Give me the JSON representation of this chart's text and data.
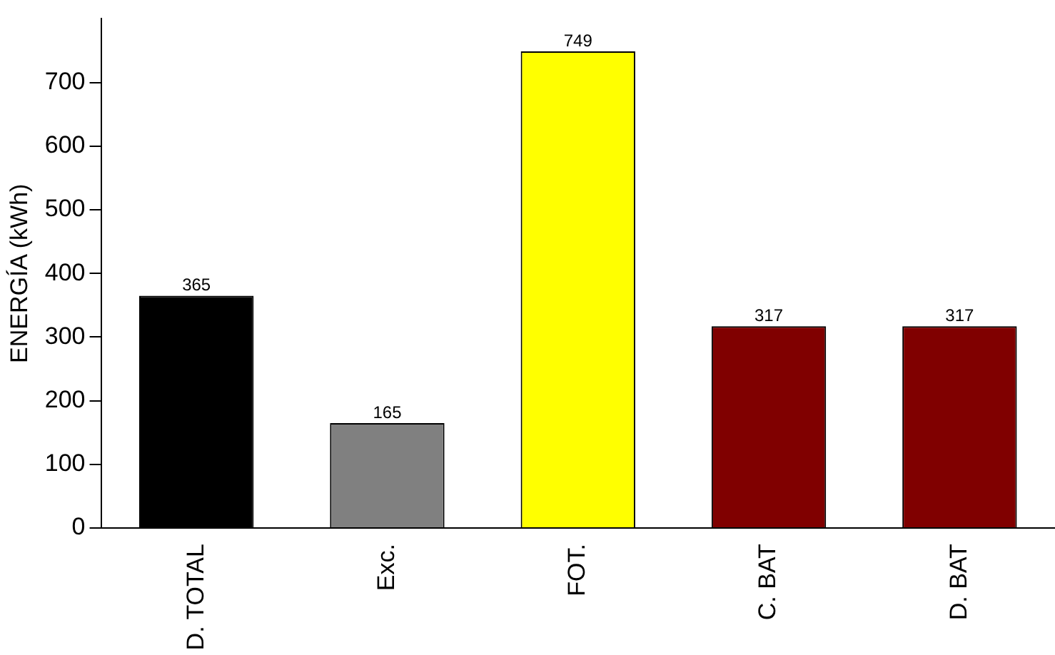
{
  "chart_data": {
    "type": "bar",
    "ylabel": "ENERGÍA (kWh)",
    "categories": [
      "D. TOTAL",
      "Exc.",
      "FOT.",
      "C. BAT",
      "D. BAT"
    ],
    "values": [
      365,
      165,
      749,
      317,
      317
    ],
    "colors": [
      "#000000",
      "#808080",
      "#ffff00",
      "#800000",
      "#800000"
    ],
    "ylim": [
      0,
      800
    ],
    "yticks": [
      0,
      100,
      200,
      300,
      400,
      500,
      600,
      700
    ],
    "data_labels": true,
    "grid": false,
    "legend": false
  }
}
